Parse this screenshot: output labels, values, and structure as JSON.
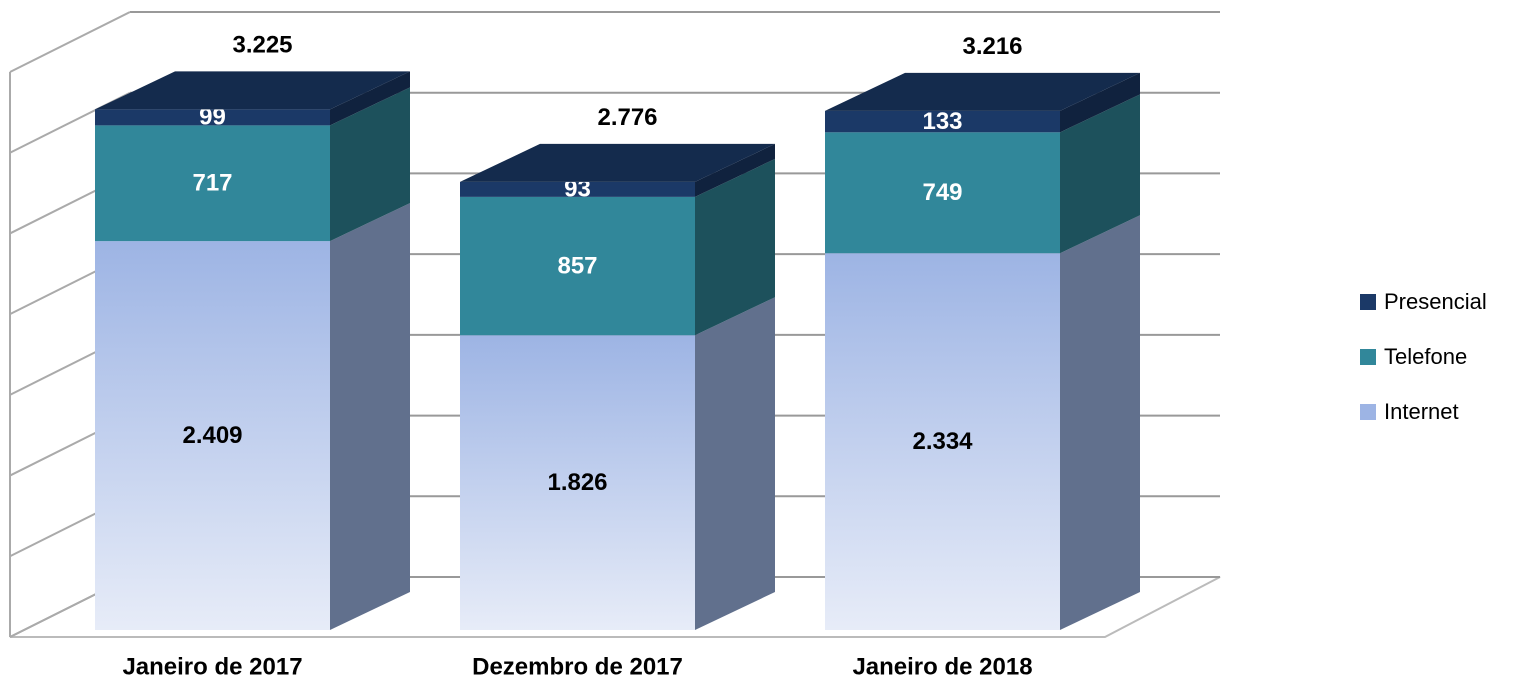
{
  "chart_data": {
    "type": "bar3d_stacked",
    "categories": [
      "Janeiro de 2017",
      "Dezembro de 2017",
      "Janeiro de 2018"
    ],
    "series": [
      {
        "name": "Internet",
        "color": "#9db4e4",
        "values": [
          2409,
          1826,
          2334
        ],
        "value_labels": [
          "2.409",
          "1.826",
          "2.334"
        ]
      },
      {
        "name": "Telefone",
        "color": "#31879a",
        "values": [
          717,
          857,
          749
        ]
      },
      {
        "name": "Presencial",
        "color": "#1b3967",
        "values": [
          99,
          93,
          133
        ]
      }
    ],
    "totals": {
      "values": [
        3225,
        2776,
        3216
      ],
      "value_labels": [
        "3.225",
        "2.776",
        "3.216"
      ]
    },
    "ylim": [
      0,
      3500
    ],
    "yticks": [
      0,
      500,
      1000,
      1500,
      2000,
      2500,
      3000,
      3500
    ],
    "grid": true,
    "legend": "right"
  }
}
